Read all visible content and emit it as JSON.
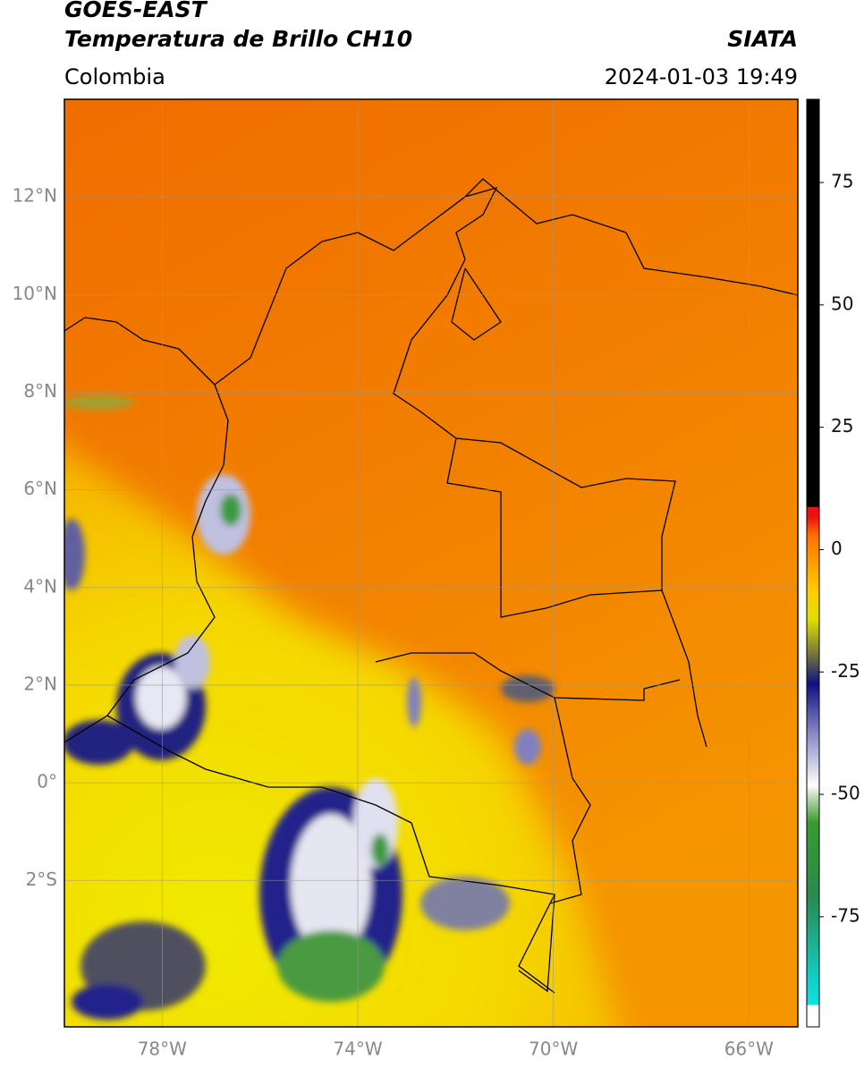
{
  "header": {
    "title": "GOES-EAST",
    "subtitle": "Temperatura de Brillo CH10",
    "region": "Colombia",
    "source": "SIATA",
    "datetime": "2024-01-03 19:49"
  },
  "map": {
    "lon_range": [
      -80,
      -65
    ],
    "lat_range": [
      -5,
      14
    ],
    "lat_ticks": [
      {
        "value": 12,
        "label": "12°N"
      },
      {
        "value": 10,
        "label": "10°N"
      },
      {
        "value": 8,
        "label": "8°N"
      },
      {
        "value": 6,
        "label": "6°N"
      },
      {
        "value": 4,
        "label": "4°N"
      },
      {
        "value": 2,
        "label": "2°N"
      },
      {
        "value": 0,
        "label": "0°"
      },
      {
        "value": -2,
        "label": "2°S"
      }
    ],
    "lon_ticks": [
      {
        "value": -78,
        "label": "78°W"
      },
      {
        "value": -74,
        "label": "74°W"
      },
      {
        "value": -70,
        "label": "70°W"
      },
      {
        "value": -66,
        "label": "66°W"
      }
    ],
    "grid": true
  },
  "colorbar": {
    "range": [
      -97.5,
      92
    ],
    "ticks": [
      75,
      50,
      25,
      0,
      -25,
      -50,
      -75
    ]
  }
}
